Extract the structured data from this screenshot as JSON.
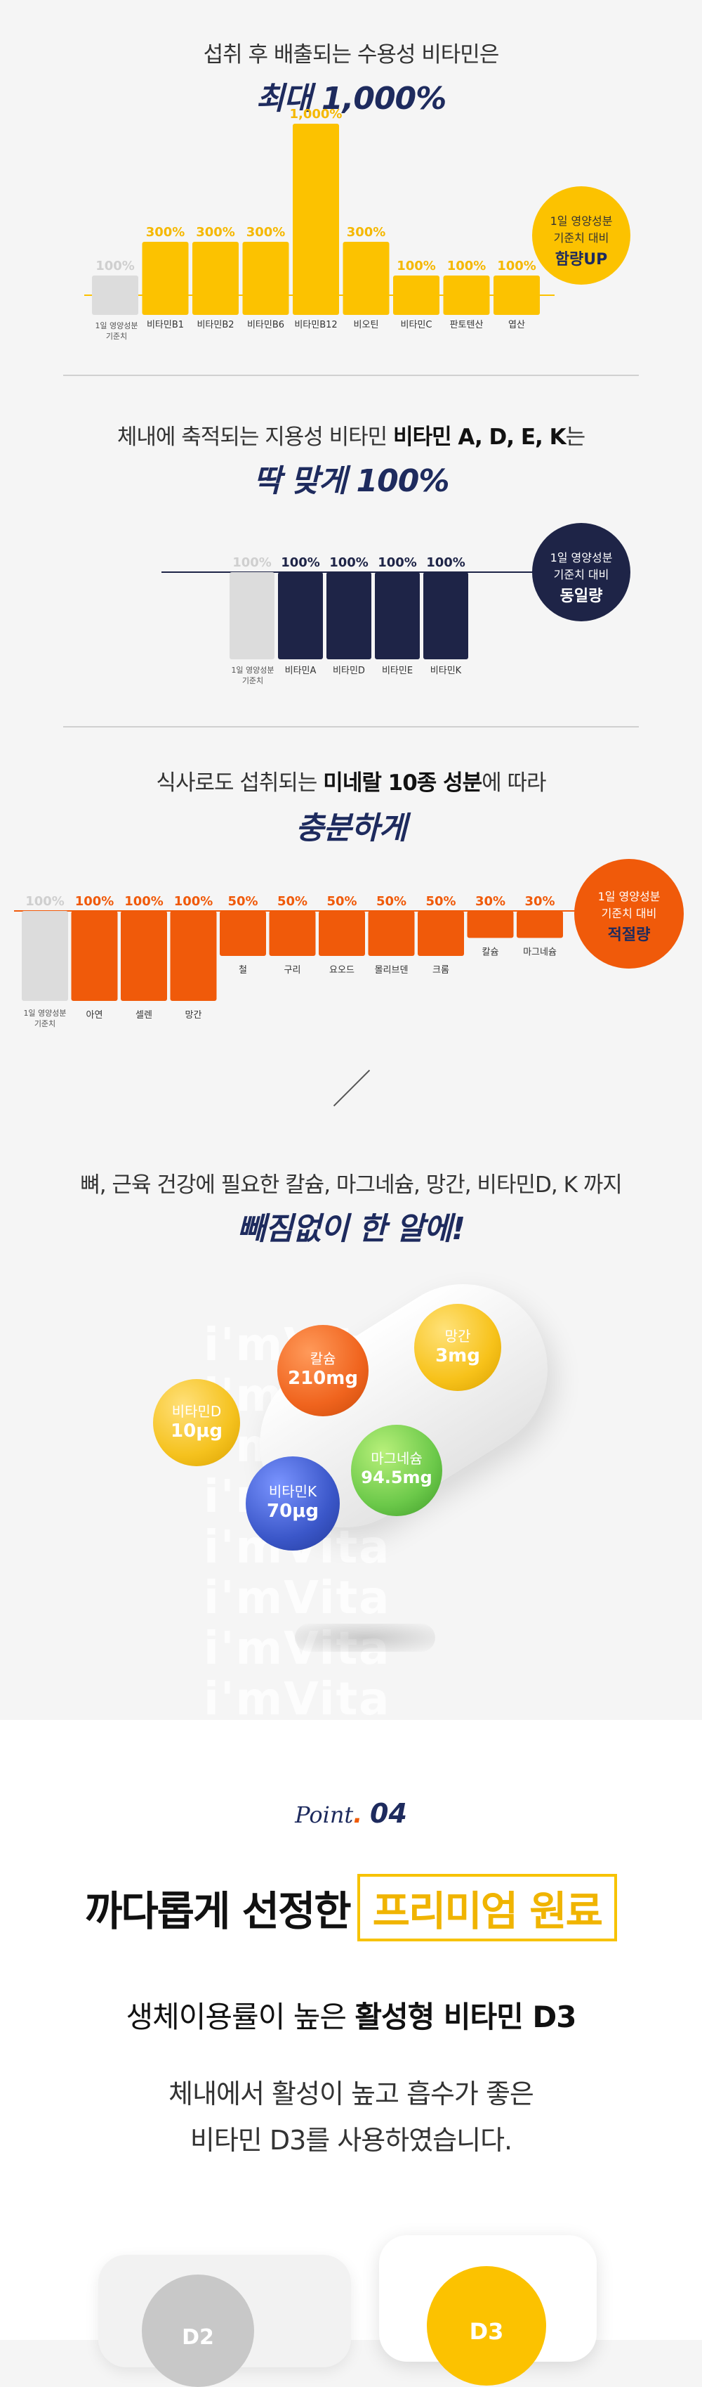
{
  "section1": {
    "intro": "섭취 후 배출되는 수용성 비타민은",
    "headline": "최대 1,000%",
    "badge": {
      "line1": "1일 영양성분",
      "line2": "기준치 대비",
      "line3": "함량UP"
    },
    "baseline_label_1": "1일 영양성분",
    "baseline_label_2": "기준치",
    "colors": {
      "bar": "#fcc200",
      "ref": "#dcdcdc",
      "badge": "#fcc200"
    }
  },
  "section2": {
    "intro_pre": "체내에 축적되는 지용성 비타민 ",
    "intro_bold": "비타민 A, D, E, K",
    "intro_post": "는",
    "headline": "딱 맞게 100%",
    "badge": {
      "line1": "1일 영양성분",
      "line2": "기준치 대비",
      "line3": "동일량"
    },
    "baseline_label_1": "1일 영양성분",
    "baseline_label_2": "기준치",
    "colors": {
      "bar": "#1e2447",
      "ref": "#dcdcdc",
      "badge": "#1e2447"
    }
  },
  "section3": {
    "intro_pre": "식사로도 섭취되는 ",
    "intro_bold": "미네랄 10종 성분",
    "intro_post": "에 따라",
    "headline": "충분하게",
    "badge": {
      "line1": "1일 영양성분",
      "line2": "기준치 대비",
      "line3": "적절량"
    },
    "baseline_label_1": "1일 영양성분",
    "baseline_label_2": "기준치",
    "colors": {
      "bar": "#f05a0a",
      "ref": "#dcdcdc",
      "badge": "#f05a0a"
    }
  },
  "section4": {
    "intro": "뼈, 근육 건강에 필요한 칼슘, 마그네슘, 망간, 비타민D, K 까지",
    "headline": "빼짐없이 한 알에!",
    "watermark": "i'mVita",
    "pills": [
      {
        "name": "칼슘",
        "amount": "210mg",
        "color": "#f0641e"
      },
      {
        "name": "망간",
        "amount": "3mg",
        "color": "#f7c21a"
      },
      {
        "name": "비타민D",
        "amount": "10μg",
        "color": "#f5c21e"
      },
      {
        "name": "마그네슘",
        "amount": "94.5mg",
        "color": "#6cc94a"
      },
      {
        "name": "비타민K",
        "amount": "70μg",
        "color": "#3b57c9"
      }
    ]
  },
  "section5": {
    "point_script": "Point",
    "point_dot": ".",
    "point_num": "04",
    "title_pre": "까다롭게 선정한",
    "title_box": "프리미엄 원료",
    "subtitle_pre": "생체이용률이 높은 ",
    "subtitle_bold": "활성형 비타민 D3",
    "desc_line1": "체내에서 활성이 높고 흡수가 좋은",
    "desc_line2": "비타민 D3를 사용하였습니다.",
    "icon_left": "D2",
    "icon_right": "D3"
  },
  "chart_data": [
    {
      "type": "bar",
      "categories": [
        "1일 영양성분 기준치",
        "비타민B1",
        "비타민B2",
        "비타민B6",
        "비타민B12",
        "비오틴",
        "비타민C",
        "판토텐산",
        "엽산"
      ],
      "values": [
        100,
        300,
        300,
        300,
        1000,
        300,
        100,
        100,
        100
      ],
      "labels": [
        "100%",
        "300%",
        "300%",
        "300%",
        "1,000%",
        "300%",
        "100%",
        "100%",
        "100%"
      ]
    },
    {
      "type": "bar",
      "categories": [
        "1일 영양성분 기준치",
        "비타민A",
        "비타민D",
        "비타민E",
        "비타민K"
      ],
      "values": [
        100,
        100,
        100,
        100,
        100
      ],
      "labels": [
        "100%",
        "100%",
        "100%",
        "100%",
        "100%"
      ]
    },
    {
      "type": "bar",
      "categories": [
        "1일 영양성분 기준치",
        "아연",
        "셀렌",
        "망간",
        "철",
        "구리",
        "요오드",
        "몰리브덴",
        "크롬",
        "칼슘",
        "마그네슘"
      ],
      "values": [
        100,
        100,
        100,
        100,
        50,
        50,
        50,
        50,
        50,
        30,
        30
      ],
      "labels": [
        "100%",
        "100%",
        "100%",
        "100%",
        "50%",
        "50%",
        "50%",
        "50%",
        "50%",
        "30%",
        "30%"
      ]
    }
  ]
}
